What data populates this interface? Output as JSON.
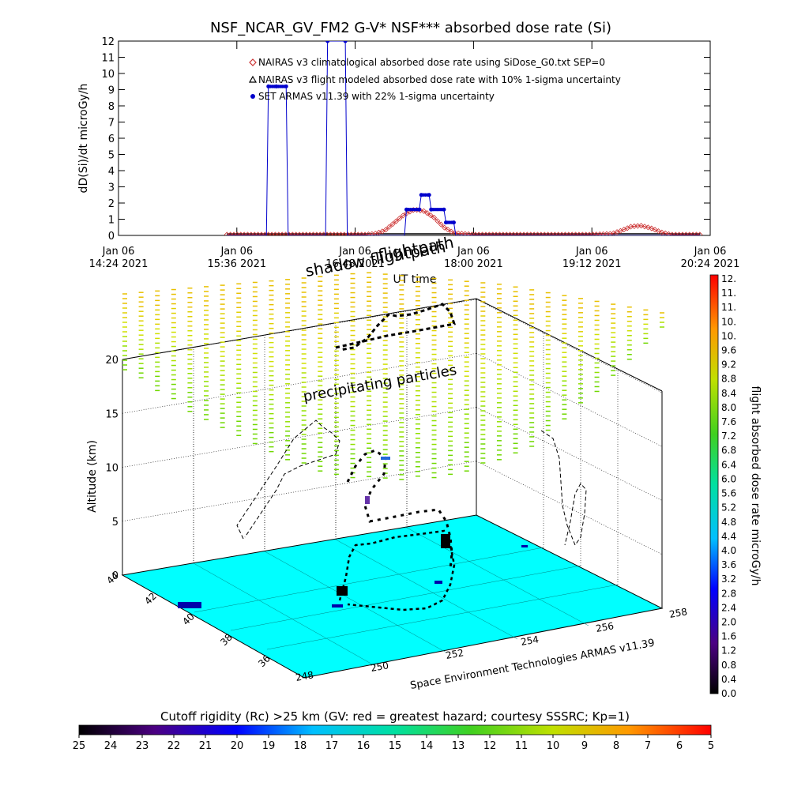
{
  "chart_data": [
    {
      "type": "line",
      "title": "NSF_NCAR_GV_FM2 G-V* NSF*** absorbed dose rate (Si)",
      "ylabel": "dD(Si)/dt microGy/h",
      "xlabel": "UT time",
      "ylim": [
        0,
        12
      ],
      "yticks": [
        "0",
        "1",
        "2",
        "3",
        "4",
        "5",
        "6",
        "7",
        "8",
        "9",
        "10",
        "11",
        "12"
      ],
      "xlim_hours": [
        14.4,
        20.4
      ],
      "xticks": [
        {
          "h": 14.4,
          "line1": "Jan 06",
          "line2": "14:24 2021"
        },
        {
          "h": 15.6,
          "line1": "Jan 06",
          "line2": "15:36 2021"
        },
        {
          "h": 16.8,
          "line1": "Jan 06",
          "line2": "16:48 2021"
        },
        {
          "h": 18.0,
          "line1": "Jan 06",
          "line2": "18:00 2021"
        },
        {
          "h": 19.2,
          "line1": "Jan 06",
          "line2": "19:12 2021"
        },
        {
          "h": 20.4,
          "line1": "Jan 06",
          "line2": "20:24 2021"
        }
      ],
      "legend": [
        {
          "label": "NAIRAS v3 climatological absorbed dose rate using SiDose_G0.txt SEP=0",
          "color": "#cc3333",
          "marker": "diamond"
        },
        {
          "label": "NAIRAS v3 flight modeled absorbed dose rate with 10% 1-sigma uncertainty",
          "color": "#000000",
          "marker": "triangle"
        },
        {
          "label": "SET ARMAS v11.39 with 22% 1-sigma uncertainty",
          "color": "#0000cc",
          "marker": "dot"
        }
      ],
      "series": [
        {
          "name": "NAIRAS v3 climatological absorbed dose rate using SiDose_G0.txt SEP=0",
          "x_hours": [
            15.5,
            16.0,
            16.5,
            16.9,
            17.0,
            17.1,
            17.2,
            17.3,
            17.4,
            17.5,
            17.6,
            17.7,
            17.8,
            18.0,
            18.6,
            19.2,
            19.4,
            19.5,
            19.6,
            19.7,
            19.8,
            19.9,
            20.0,
            20.3
          ],
          "values": [
            0.05,
            0.05,
            0.05,
            0.05,
            0.1,
            0.3,
            0.8,
            1.3,
            1.6,
            1.5,
            1.1,
            0.5,
            0.15,
            0.05,
            0.05,
            0.05,
            0.1,
            0.3,
            0.55,
            0.6,
            0.45,
            0.2,
            0.05,
            0.05
          ]
        },
        {
          "name": "SET ARMAS v11.39 with 22% 1-sigma uncertainty",
          "x_hours": [
            15.5,
            15.9,
            15.92,
            16.0,
            16.1,
            16.12,
            16.5,
            16.52,
            16.7,
            16.72,
            16.9,
            17.3,
            17.32,
            17.45,
            17.47,
            17.55,
            17.57,
            17.7,
            17.72,
            17.8,
            17.82,
            18.0,
            19.2,
            20.3
          ],
          "values": [
            0.0,
            0.0,
            9.2,
            9.2,
            9.2,
            0.0,
            0.0,
            12.0,
            12.0,
            0.0,
            0.0,
            0.0,
            1.6,
            1.6,
            2.5,
            2.5,
            1.6,
            1.6,
            0.8,
            0.8,
            0.0,
            0.0,
            0.0,
            0.0
          ]
        },
        {
          "name": "NAIRAS v3 flight modeled absorbed dose rate with 10% 1-sigma uncertainty",
          "x_hours": [
            15.5,
            20.3
          ],
          "values": [
            0.0,
            0.0
          ]
        }
      ]
    },
    {
      "type": "scatter",
      "title": "",
      "ylabel": "Altitude (km)",
      "zticks": [
        "0",
        "5",
        "10",
        "15",
        "20"
      ],
      "lat_ticks": [
        "44",
        "42",
        "40",
        "38",
        "36"
      ],
      "lon_ticks": [
        "248",
        "250",
        "252",
        "254",
        "256",
        "258"
      ],
      "annotations": [
        "shadow flightpath",
        "flightpath",
        "precipitating particles",
        "Space Environment Technologies ARMAS v11.39"
      ],
      "flight_track": [
        {
          "lon": 253.0,
          "lat": 40.4,
          "alt_km": 0.2
        },
        {
          "lon": 252.4,
          "lat": 40.1,
          "alt_km": 3.0
        },
        {
          "lon": 251.9,
          "lat": 39.9,
          "alt_km": 8.0
        },
        {
          "lon": 251.2,
          "lat": 39.6,
          "alt_km": 11.0
        },
        {
          "lon": 250.4,
          "lat": 39.3,
          "alt_km": 12.5
        },
        {
          "lon": 249.7,
          "lat": 39.1,
          "alt_km": 12.5
        },
        {
          "lon": 249.3,
          "lat": 39.0,
          "alt_km": 12.0
        },
        {
          "lon": 249.1,
          "lat": 39.2,
          "alt_km": 11.0
        },
        {
          "lon": 250.0,
          "lat": 39.8,
          "alt_km": 8.0
        },
        {
          "lon": 251.0,
          "lat": 40.4,
          "alt_km": 4.0
        },
        {
          "lon": 251.8,
          "lat": 40.9,
          "alt_km": 1.0
        },
        {
          "lon": 252.5,
          "lat": 41.0,
          "alt_km": 0.2
        }
      ],
      "colorbar_right": {
        "label": "flight absorbed dose rate microGy/h",
        "ticks": [
          "0.0",
          "0.4",
          "0.8",
          "1.2",
          "1.6",
          "2.0",
          "2.4",
          "2.8",
          "3.2",
          "3.6",
          "4.0",
          "4.4",
          "4.8",
          "5.2",
          "5.6",
          "6.0",
          "6.4",
          "6.8",
          "7.2",
          "7.6",
          "8.0",
          "8.4",
          "8.8",
          "9.2",
          "9.6",
          "10.",
          "10.",
          "11.",
          "11.",
          "12."
        ]
      },
      "colorbar_bottom": {
        "title": "Cutoff rigidity (Rc) >25 km (GV: red = greatest hazard; courtesy SSSRC; Kp=1)",
        "ticks": [
          "25",
          "24",
          "23",
          "22",
          "21",
          "20",
          "19",
          "18",
          "17",
          "16",
          "15",
          "14",
          "13",
          "12",
          "11",
          "10",
          "9",
          "8",
          "7",
          "6",
          "5"
        ]
      },
      "colors": {
        "floor": "#00ffff",
        "high_dose": "#ff0000",
        "low_dose": "#000000"
      }
    }
  ]
}
